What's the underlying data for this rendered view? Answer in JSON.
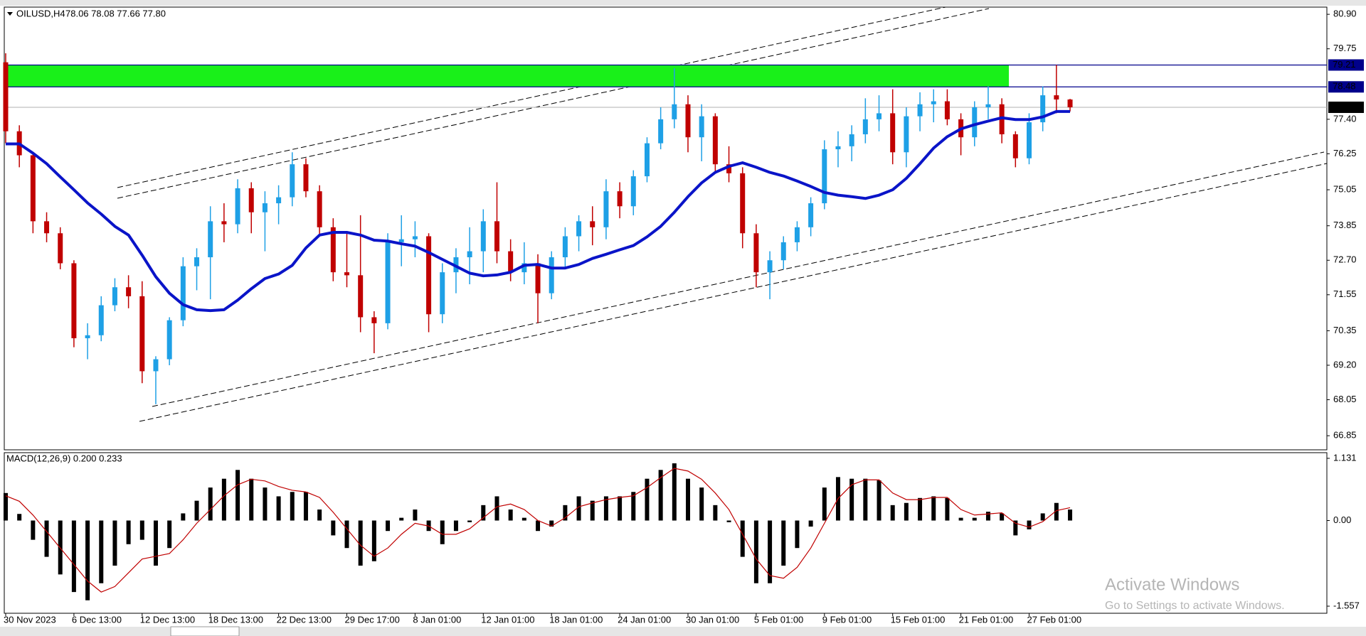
{
  "chart_data": {
    "type": "candlestick",
    "symbol": "OILUSD,H4",
    "ohlc_text": "78.06 78.08 77.66 77.80",
    "categories": [
      "30 Nov 2023",
      null,
      null,
      null,
      null,
      "6 Dec 13:00",
      null,
      null,
      null,
      null,
      "12 Dec 13:00",
      null,
      null,
      null,
      null,
      "18 Dec 13:00",
      null,
      null,
      null,
      null,
      "22 Dec 13:00",
      null,
      null,
      null,
      null,
      "29 Dec 17:00",
      null,
      null,
      null,
      null,
      "8 Jan 01:00",
      null,
      null,
      null,
      null,
      "12 Jan 01:00",
      null,
      null,
      null,
      null,
      "18 Jan 01:00",
      null,
      null,
      null,
      null,
      "24 Jan 01:00",
      null,
      null,
      null,
      null,
      "30 Jan 01:00",
      null,
      null,
      null,
      null,
      "5 Feb 01:00",
      null,
      null,
      null,
      null,
      "9 Feb 01:00",
      null,
      null,
      null,
      null,
      "15 Feb 01:00",
      null,
      null,
      null,
      null,
      "21 Feb 01:00",
      null,
      null,
      null,
      null,
      "27 Feb 01:00",
      null,
      null,
      null
    ],
    "candles": {
      "up_color": "#1ea0e6",
      "down_color": "#c00000",
      "open": [
        79.3,
        77.0,
        76.2,
        74.0,
        73.6,
        72.6,
        70.1,
        70.2,
        71.2,
        71.8,
        71.5,
        69.0,
        69.4,
        70.7,
        72.5,
        72.8,
        74.0,
        73.9,
        75.1,
        74.3,
        74.6,
        74.8,
        75.9,
        75.0,
        73.8,
        72.3,
        72.2,
        70.8,
        70.6,
        73.3,
        73.4,
        73.5,
        70.9,
        72.3,
        72.8,
        73.0,
        74.0,
        73.0,
        72.3,
        72.6,
        71.6,
        72.8,
        73.5,
        74.0,
        73.8,
        75.0,
        74.5,
        75.5,
        76.6,
        77.4,
        77.9,
        76.8,
        77.5,
        75.9,
        75.6,
        73.6,
        72.3,
        72.7,
        73.3,
        73.8,
        74.6,
        76.4,
        76.5,
        76.9,
        77.4,
        77.6,
        76.3,
        77.5,
        77.9,
        78.0,
        77.4,
        76.8,
        77.8,
        77.9,
        76.9,
        76.1,
        77.3,
        78.2,
        78.06
      ],
      "high": [
        79.6,
        77.2,
        76.3,
        74.3,
        73.8,
        72.7,
        70.6,
        71.5,
        72.1,
        72.2,
        72.0,
        69.5,
        70.8,
        72.8,
        73.1,
        74.5,
        74.6,
        75.4,
        75.3,
        75.0,
        75.2,
        76.3,
        76.1,
        75.2,
        74.1,
        73.6,
        74.2,
        71.0,
        73.6,
        74.2,
        74.0,
        73.6,
        72.6,
        73.1,
        73.8,
        74.4,
        75.3,
        73.4,
        73.3,
        72.9,
        73.0,
        73.8,
        74.2,
        74.5,
        75.4,
        75.3,
        75.7,
        76.8,
        77.8,
        79.1,
        78.2,
        77.9,
        77.6,
        76.5,
        75.8,
        73.9,
        73.0,
        73.5,
        74.0,
        74.8,
        76.7,
        77.0,
        77.2,
        78.1,
        78.2,
        78.4,
        77.8,
        78.3,
        78.4,
        78.4,
        77.6,
        78.0,
        78.5,
        78.1,
        77.0,
        77.6,
        78.5,
        79.21,
        78.08
      ],
      "low": [
        76.6,
        75.8,
        73.6,
        73.3,
        72.4,
        69.8,
        69.4,
        70.0,
        71.0,
        71.1,
        68.6,
        67.9,
        69.2,
        70.5,
        71.7,
        71.4,
        73.3,
        73.6,
        73.6,
        73.0,
        73.9,
        74.5,
        74.8,
        73.5,
        72.0,
        71.8,
        70.3,
        69.6,
        70.4,
        72.5,
        72.8,
        70.3,
        70.6,
        71.6,
        71.9,
        72.3,
        72.6,
        72.0,
        71.9,
        70.6,
        71.4,
        72.4,
        73.0,
        73.2,
        73.4,
        74.1,
        74.2,
        75.3,
        76.4,
        77.1,
        76.3,
        76.0,
        75.6,
        75.3,
        73.1,
        71.8,
        71.4,
        72.4,
        73.0,
        73.5,
        74.4,
        75.8,
        76.0,
        76.6,
        77.0,
        75.9,
        75.8,
        77.0,
        77.3,
        77.2,
        76.2,
        76.5,
        77.4,
        76.6,
        75.8,
        75.9,
        77.0,
        77.6,
        77.66
      ],
      "close": [
        77.0,
        76.2,
        74.0,
        73.6,
        72.6,
        70.1,
        70.2,
        71.2,
        71.8,
        71.5,
        69.0,
        69.4,
        70.7,
        72.5,
        72.8,
        74.0,
        73.9,
        75.1,
        74.3,
        74.6,
        74.8,
        75.9,
        75.0,
        73.8,
        72.3,
        72.2,
        70.8,
        70.6,
        73.3,
        73.4,
        73.5,
        70.9,
        72.3,
        72.8,
        73.0,
        74.0,
        73.0,
        72.3,
        72.6,
        71.6,
        72.8,
        73.5,
        74.0,
        73.8,
        75.0,
        74.5,
        75.5,
        76.6,
        77.4,
        77.9,
        76.8,
        77.5,
        75.9,
        75.6,
        73.6,
        72.3,
        72.7,
        73.3,
        73.8,
        74.6,
        76.4,
        76.5,
        76.9,
        77.4,
        77.6,
        76.3,
        77.5,
        77.9,
        78.0,
        77.4,
        76.8,
        77.8,
        77.9,
        76.9,
        76.1,
        77.3,
        78.2,
        78.06,
        77.8
      ]
    },
    "ma": {
      "color": "#0a14c8",
      "values": [
        76.58,
        76.58,
        76.27,
        75.92,
        75.48,
        75.05,
        74.61,
        74.24,
        73.83,
        73.54,
        72.87,
        72.15,
        71.6,
        71.22,
        71.05,
        71.02,
        71.05,
        71.37,
        71.75,
        72.09,
        72.24,
        72.53,
        73.11,
        73.54,
        73.63,
        73.63,
        73.54,
        73.37,
        73.34,
        73.25,
        73.17,
        72.96,
        72.73,
        72.5,
        72.27,
        72.18,
        72.21,
        72.3,
        72.53,
        72.56,
        72.44,
        72.44,
        72.56,
        72.76,
        72.9,
        73.05,
        73.19,
        73.48,
        73.83,
        74.3,
        74.82,
        75.28,
        75.63,
        75.83,
        75.95,
        75.8,
        75.63,
        75.51,
        75.34,
        75.16,
        74.96,
        74.87,
        74.82,
        74.76,
        74.87,
        75.05,
        75.43,
        75.92,
        76.44,
        76.82,
        77.08,
        77.22,
        77.34,
        77.45,
        77.39,
        77.39,
        77.48,
        77.66,
        77.66
      ]
    },
    "levels": [
      {
        "value": 79.21,
        "color": "#00008b"
      },
      {
        "value": 78.48,
        "color": "#00008b"
      },
      {
        "value": 77.8,
        "label": "77.80",
        "color": "#000000"
      }
    ],
    "zone_color": "#19f019",
    "ylim": [
      66.38,
      81.14
    ],
    "yticks": [
      {
        "value": 80.9,
        "label": "80.90"
      },
      79.75,
      {
        "value": 77.4,
        "label": "77.40"
      },
      76.25,
      75.05,
      73.85,
      {
        "value": 72.7,
        "label": "72.70"
      },
      71.55,
      70.35,
      {
        "value": 69.2,
        "label": "69.20"
      },
      68.05,
      66.85
    ],
    "macd": {
      "title": "MACD(12,26,9) 0.200 0.233",
      "histogram": {
        "color": "#000000",
        "values": [
          0.5,
          0.12,
          -0.35,
          -0.66,
          -0.98,
          -1.3,
          -1.45,
          -1.14,
          -0.82,
          -0.43,
          -0.35,
          -0.82,
          -0.5,
          0.13,
          0.36,
          0.6,
          0.76,
          0.92,
          0.76,
          0.6,
          0.44,
          0.52,
          0.52,
          0.2,
          -0.27,
          -0.5,
          -0.82,
          -0.74,
          -0.19,
          0.05,
          0.2,
          -0.19,
          -0.43,
          -0.19,
          -0.03,
          0.28,
          0.44,
          0.2,
          0.05,
          -0.19,
          -0.11,
          0.28,
          0.44,
          0.36,
          0.44,
          0.44,
          0.52,
          0.76,
          0.92,
          1.04,
          0.76,
          0.6,
          0.28,
          -0.03,
          -0.66,
          -1.14,
          -1.14,
          -0.82,
          -0.5,
          -0.11,
          0.6,
          0.79,
          0.76,
          0.76,
          0.73,
          0.28,
          0.32,
          0.41,
          0.44,
          0.41,
          0.05,
          0.05,
          0.16,
          0.13,
          -0.27,
          -0.16,
          0.13,
          0.32,
          0.2
        ]
      },
      "signal": {
        "color": "#c00000",
        "values": [
          0.45,
          0.35,
          0.1,
          -0.2,
          -0.5,
          -0.8,
          -1.1,
          -1.3,
          -1.2,
          -0.95,
          -0.7,
          -0.65,
          -0.6,
          -0.35,
          -0.05,
          0.2,
          0.45,
          0.65,
          0.75,
          0.72,
          0.62,
          0.55,
          0.52,
          0.42,
          0.15,
          -0.15,
          -0.45,
          -0.65,
          -0.5,
          -0.25,
          -0.05,
          -0.1,
          -0.25,
          -0.25,
          -0.15,
          0.05,
          0.25,
          0.3,
          0.2,
          0.0,
          -0.1,
          0.05,
          0.25,
          0.32,
          0.38,
          0.42,
          0.45,
          0.6,
          0.78,
          0.95,
          0.9,
          0.75,
          0.5,
          0.2,
          -0.25,
          -0.7,
          -1.0,
          -1.05,
          -0.85,
          -0.5,
          -0.05,
          0.4,
          0.65,
          0.74,
          0.74,
          0.5,
          0.38,
          0.38,
          0.42,
          0.42,
          0.2,
          0.1,
          0.12,
          0.14,
          -0.05,
          -0.12,
          -0.02,
          0.18,
          0.233
        ]
      },
      "ylim": [
        -1.686,
        1.234
      ],
      "yticks": [
        1.131,
        {
          "value": 0,
          "label": "0.00"
        },
        -1.557
      ]
    },
    "watermark": [
      "Activate Windows",
      "Go to Settings to activate Windows."
    ]
  }
}
